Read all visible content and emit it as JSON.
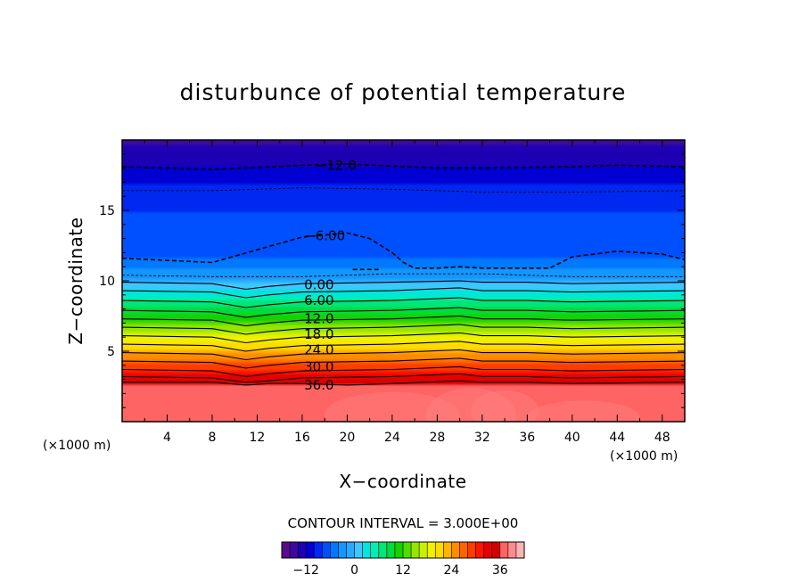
{
  "chart_data": {
    "type": "heatmap",
    "subtype": "filled-contour",
    "title": "disturbunce of potential temperature",
    "xlabel": "X−coordinate",
    "ylabel": "Z−coordinate",
    "x_unit_label": "(×1000 m)",
    "z_unit_label": "(×1000 m)",
    "xlim": [
      0,
      50
    ],
    "ylim": [
      0,
      20
    ],
    "xticks": [
      4,
      8,
      12,
      16,
      20,
      24,
      28,
      32,
      36,
      40,
      44,
      48
    ],
    "yticks": [
      5,
      10,
      15
    ],
    "contour_interval_text": "CONTOUR INTERVAL = 3.000E+00",
    "contour_interval": 3.0,
    "negative_contours": "dashed",
    "contour_labels": [
      {
        "text": "−12.0",
        "x": 19,
        "z": 18.2
      },
      {
        "text": "−6.00",
        "x": 18,
        "z": 13.2
      },
      {
        "text": "0.00",
        "x": 17.5,
        "z": 9.7
      },
      {
        "text": "6.00",
        "x": 17.5,
        "z": 8.6
      },
      {
        "text": "12.0",
        "x": 17.5,
        "z": 7.3
      },
      {
        "text": "18.0",
        "x": 17.5,
        "z": 6.2
      },
      {
        "text": "24.0",
        "x": 17.5,
        "z": 5.1
      },
      {
        "text": "30.0",
        "x": 17.5,
        "z": 3.9
      },
      {
        "text": "36.0",
        "x": 17.5,
        "z": 2.6
      }
    ],
    "contour_lines": [
      {
        "level": -12,
        "style": "dashed",
        "x": [
          0,
          8,
          16,
          20,
          28,
          32,
          40,
          44,
          50
        ],
        "z": [
          18.1,
          17.9,
          18.2,
          18.3,
          18.0,
          18.0,
          18.1,
          18.2,
          18.1
        ]
      },
      {
        "level": -9,
        "style": "dashed-thin",
        "x": [
          0,
          8,
          16,
          24,
          32,
          40,
          50
        ],
        "z": [
          16.4,
          16.4,
          16.6,
          16.5,
          16.3,
          16.3,
          16.4
        ]
      },
      {
        "level": -6,
        "style": "dashed",
        "x": [
          0,
          8,
          12,
          16,
          20,
          22,
          24,
          25,
          26,
          28,
          30,
          32,
          34,
          36,
          38,
          40,
          44,
          48,
          50
        ],
        "z": [
          11.6,
          11.3,
          12.2,
          13.1,
          13.4,
          13.0,
          12.0,
          11.3,
          10.9,
          10.9,
          11.0,
          10.9,
          10.9,
          10.9,
          10.9,
          11.7,
          12.1,
          11.9,
          11.5
        ]
      },
      {
        "level": -3,
        "style": "dashed-thin",
        "x": [
          0,
          8,
          12,
          16,
          24,
          32,
          40,
          50
        ],
        "z": [
          10.4,
          10.3,
          10.3,
          10.3,
          10.5,
          10.5,
          10.3,
          10.3
        ]
      },
      {
        "level": 0,
        "style": "solid",
        "x": [
          0,
          8,
          11,
          13,
          16,
          24,
          30,
          32,
          36,
          40,
          50
        ],
        "z": [
          9.9,
          9.8,
          9.4,
          9.6,
          9.8,
          9.9,
          10.0,
          9.9,
          9.9,
          9.8,
          9.9
        ]
      },
      {
        "level": 3,
        "style": "solid",
        "x": [
          0,
          8,
          11,
          13,
          16,
          24,
          30,
          32,
          36,
          40,
          50
        ],
        "z": [
          9.3,
          9.2,
          8.8,
          9.0,
          9.2,
          9.3,
          9.5,
          9.3,
          9.3,
          9.2,
          9.3
        ]
      },
      {
        "level": 6,
        "style": "solid",
        "x": [
          0,
          8,
          11,
          13,
          16,
          24,
          30,
          32,
          36,
          40,
          50
        ],
        "z": [
          8.6,
          8.5,
          8.1,
          8.3,
          8.5,
          8.6,
          8.8,
          8.6,
          8.6,
          8.5,
          8.6
        ]
      },
      {
        "level": 9,
        "style": "solid",
        "x": [
          0,
          8,
          11,
          13,
          16,
          24,
          30,
          32,
          36,
          40,
          50
        ],
        "z": [
          7.9,
          7.8,
          7.4,
          7.6,
          7.8,
          7.9,
          8.1,
          7.9,
          7.9,
          7.8,
          7.9
        ]
      },
      {
        "level": 12,
        "style": "solid",
        "x": [
          0,
          8,
          11,
          13,
          16,
          24,
          30,
          32,
          36,
          40,
          50
        ],
        "z": [
          7.3,
          7.2,
          6.8,
          7.0,
          7.2,
          7.3,
          7.5,
          7.3,
          7.3,
          7.2,
          7.3
        ]
      },
      {
        "level": 15,
        "style": "solid",
        "x": [
          0,
          8,
          11,
          13,
          16,
          24,
          30,
          32,
          36,
          40,
          50
        ],
        "z": [
          6.7,
          6.6,
          6.2,
          6.4,
          6.6,
          6.7,
          6.9,
          6.7,
          6.7,
          6.6,
          6.7
        ]
      },
      {
        "level": 18,
        "style": "solid",
        "x": [
          0,
          8,
          11,
          13,
          16,
          24,
          30,
          32,
          36,
          40,
          50
        ],
        "z": [
          6.1,
          6.0,
          5.6,
          5.8,
          6.0,
          6.1,
          6.3,
          6.1,
          6.1,
          6.0,
          6.1
        ]
      },
      {
        "level": 21,
        "style": "solid",
        "x": [
          0,
          8,
          11,
          13,
          16,
          24,
          30,
          32,
          36,
          40,
          50
        ],
        "z": [
          5.5,
          5.4,
          5.0,
          5.2,
          5.4,
          5.5,
          5.7,
          5.5,
          5.5,
          5.4,
          5.5
        ]
      },
      {
        "level": 24,
        "style": "solid",
        "x": [
          0,
          8,
          11,
          13,
          16,
          24,
          30,
          32,
          36,
          40,
          50
        ],
        "z": [
          4.9,
          4.8,
          4.4,
          4.6,
          4.8,
          4.9,
          5.1,
          4.9,
          4.9,
          4.8,
          4.9
        ]
      },
      {
        "level": 27,
        "style": "solid",
        "x": [
          0,
          8,
          11,
          13,
          16,
          24,
          30,
          32,
          36,
          40,
          50
        ],
        "z": [
          4.3,
          4.2,
          3.8,
          4.0,
          4.2,
          4.3,
          4.5,
          4.3,
          4.3,
          4.2,
          4.3
        ]
      },
      {
        "level": 30,
        "style": "solid",
        "x": [
          0,
          8,
          11,
          13,
          16,
          24,
          30,
          32,
          36,
          40,
          50
        ],
        "z": [
          3.7,
          3.6,
          3.2,
          3.4,
          3.6,
          3.7,
          3.9,
          3.7,
          3.7,
          3.6,
          3.7
        ]
      },
      {
        "level": 33,
        "style": "solid",
        "x": [
          0,
          8,
          11,
          13,
          16,
          24,
          30,
          32,
          36,
          40,
          50
        ],
        "z": [
          3.2,
          3.1,
          2.8,
          2.9,
          3.1,
          3.2,
          3.4,
          3.2,
          3.2,
          3.1,
          3.2
        ]
      },
      {
        "level": 36,
        "style": "solid",
        "x": [
          0,
          8,
          11,
          13,
          16,
          20,
          24,
          30,
          32,
          36,
          40,
          50
        ],
        "z": [
          2.8,
          2.8,
          2.6,
          2.7,
          2.7,
          2.6,
          2.7,
          2.9,
          2.8,
          2.8,
          2.7,
          2.8
        ]
      }
    ],
    "colorbar": {
      "min": -18,
      "max": 42,
      "tick_values": [
        -12,
        0,
        12,
        24,
        36
      ],
      "tick_labels": [
        "−12",
        "0",
        "12",
        "24",
        "36"
      ],
      "colors": [
        "#5a0a8c",
        "#3c0a9e",
        "#1e00b4",
        "#0000d2",
        "#0028f0",
        "#0050ff",
        "#0078ff",
        "#1496ff",
        "#28aaff",
        "#3cc8ff",
        "#00e6dc",
        "#00f0b4",
        "#00e678",
        "#00dc3c",
        "#14d200",
        "#50dc00",
        "#96e600",
        "#c8f000",
        "#f0f000",
        "#ffdc00",
        "#ffb400",
        "#ff8c00",
        "#ff6400",
        "#ff3c00",
        "#ff1400",
        "#e60000",
        "#d20000",
        "#ff6464",
        "#ff8c8c",
        "#ffb4b4"
      ]
    }
  }
}
